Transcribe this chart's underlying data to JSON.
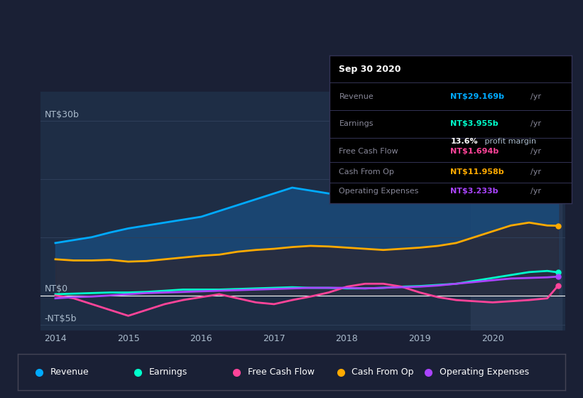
{
  "bg_color": "#1a2035",
  "chart_bg_color": "#1e2d45",
  "highlight_bg": "#2a3a55",
  "grid_color": "#2e3f5a",
  "zero_line_color": "#ffffff",
  "years": [
    2014.0,
    2014.25,
    2014.5,
    2014.75,
    2015.0,
    2015.25,
    2015.5,
    2015.75,
    2016.0,
    2016.25,
    2016.5,
    2016.75,
    2017.0,
    2017.25,
    2017.5,
    2017.75,
    2018.0,
    2018.25,
    2018.5,
    2018.75,
    2019.0,
    2019.25,
    2019.5,
    2019.75,
    2020.0,
    2020.25,
    2020.5,
    2020.75,
    2020.9
  ],
  "revenue": [
    9.0,
    9.5,
    10.0,
    10.8,
    11.5,
    12.0,
    12.5,
    13.0,
    13.5,
    14.5,
    15.5,
    16.5,
    17.5,
    18.5,
    18.0,
    17.5,
    17.2,
    17.0,
    17.5,
    18.0,
    18.5,
    20.0,
    23.0,
    26.0,
    28.0,
    29.5,
    30.5,
    31.0,
    29.169
  ],
  "cash_from_op": [
    6.2,
    6.0,
    6.0,
    6.1,
    5.8,
    5.9,
    6.2,
    6.5,
    6.8,
    7.0,
    7.5,
    7.8,
    8.0,
    8.3,
    8.5,
    8.4,
    8.2,
    8.0,
    7.8,
    8.0,
    8.2,
    8.5,
    9.0,
    10.0,
    11.0,
    12.0,
    12.5,
    12.0,
    11.958
  ],
  "earnings": [
    0.2,
    0.3,
    0.4,
    0.5,
    0.5,
    0.6,
    0.8,
    1.0,
    1.0,
    1.0,
    1.1,
    1.2,
    1.3,
    1.4,
    1.3,
    1.3,
    1.2,
    1.2,
    1.3,
    1.5,
    1.6,
    1.8,
    2.0,
    2.5,
    3.0,
    3.5,
    4.0,
    4.2,
    3.955
  ],
  "free_cash_flow": [
    0.0,
    -0.5,
    -1.5,
    -2.5,
    -3.5,
    -2.5,
    -1.5,
    -0.8,
    -0.3,
    0.2,
    -0.5,
    -1.2,
    -1.5,
    -0.8,
    -0.2,
    0.5,
    1.5,
    2.0,
    2.0,
    1.5,
    0.5,
    -0.3,
    -0.8,
    -1.0,
    -1.2,
    -1.0,
    -0.8,
    -0.5,
    1.694
  ],
  "operating_expenses": [
    -0.5,
    -0.3,
    -0.2,
    0.0,
    0.2,
    0.4,
    0.5,
    0.6,
    0.7,
    0.8,
    0.9,
    1.0,
    1.1,
    1.2,
    1.3,
    1.3,
    1.3,
    1.2,
    1.3,
    1.4,
    1.5,
    1.7,
    2.0,
    2.3,
    2.6,
    2.9,
    3.0,
    3.1,
    3.233
  ],
  "revenue_color": "#00aaff",
  "earnings_color": "#00ffcc",
  "free_cash_flow_color": "#ff4499",
  "cash_from_op_color": "#ffaa00",
  "operating_expenses_color": "#aa44ff",
  "revenue_fill": "#1a4a7a",
  "cash_from_op_fill": "#2a2a3a",
  "ylim_min": -6,
  "ylim_max": 35,
  "xtick_labels": [
    "2014",
    "2015",
    "2016",
    "2017",
    "2018",
    "2019",
    "2020"
  ],
  "xtick_positions": [
    2014,
    2015,
    2016,
    2017,
    2018,
    2019,
    2020
  ],
  "legend_items": [
    {
      "label": "Revenue",
      "color": "#00aaff"
    },
    {
      "label": "Earnings",
      "color": "#00ffcc"
    },
    {
      "label": "Free Cash Flow",
      "color": "#ff4499"
    },
    {
      "label": "Cash From Op",
      "color": "#ffaa00"
    },
    {
      "label": "Operating Expenses",
      "color": "#aa44ff"
    }
  ],
  "tooltip": {
    "title": "Sep 30 2020",
    "rows": [
      {
        "label": "Revenue",
        "value": "NT$29.169b",
        "value_color": "#00aaff",
        "sub": null
      },
      {
        "label": "Earnings",
        "value": "NT$3.955b",
        "value_color": "#00ffcc",
        "sub": "13.6% profit margin"
      },
      {
        "label": "Free Cash Flow",
        "value": "NT$1.694b",
        "value_color": "#ff4499",
        "sub": null
      },
      {
        "label": "Cash From Op",
        "value": "NT$11.958b",
        "value_color": "#ffaa00",
        "sub": null
      },
      {
        "label": "Operating Expenses",
        "value": "NT$3.233b",
        "value_color": "#aa44ff",
        "sub": null
      }
    ]
  }
}
